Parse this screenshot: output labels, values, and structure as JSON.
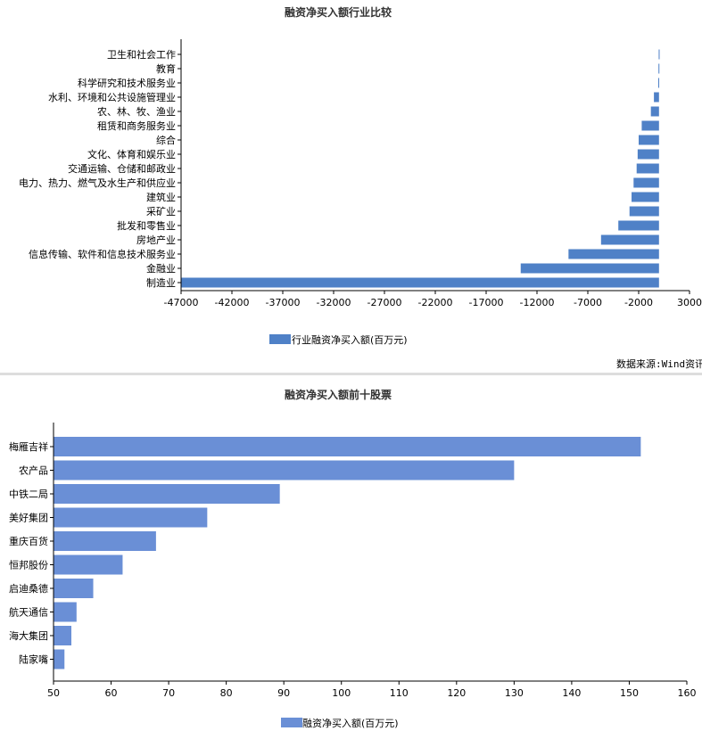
{
  "charts": {
    "bar_color": "#4f81c7",
    "bar_color_2": "#6a8fd6",
    "source_text": "数据来源:Wind资讯"
  },
  "chart_data": [
    {
      "type": "bar",
      "orientation": "horizontal",
      "title": "融资净买入额行业比较",
      "categories": [
        "卫生和社会工作",
        "教育",
        "科学研究和技术服务业",
        "水利、环境和公共设施管理业",
        "农、林、牧、渔业",
        "租赁和商务服务业",
        "综合",
        "文化、体育和娱乐业",
        "交通运输、仓储和邮政业",
        "电力、热力、燃气及水生产和供应业",
        "建筑业",
        "采矿业",
        "批发和零售业",
        "房地产业",
        "信息传输、软件和信息技术服务业",
        "金融业",
        "制造业"
      ],
      "series": [
        {
          "name": "行业融资净买入额(百万元)",
          "values": [
            -30,
            -50,
            -70,
            -500,
            -800,
            -1700,
            -2000,
            -2100,
            -2200,
            -2500,
            -2700,
            -2900,
            -4000,
            -5700,
            -8900,
            -13600,
            -47000
          ]
        }
      ],
      "xlim": [
        -47000,
        3000
      ],
      "xticks": [
        -47000,
        -42000,
        -37000,
        -32000,
        -27000,
        -22000,
        -17000,
        -12000,
        -7000,
        -2000,
        3000
      ],
      "legend": "bottom"
    },
    {
      "type": "bar",
      "orientation": "horizontal",
      "title": "融资净买入额前十股票",
      "categories": [
        "梅雁吉祥",
        "农产品",
        "中铁二局",
        "美好集团",
        "重庆百货",
        "恒邦股份",
        "启迪桑德",
        "航天通信",
        "海大集团",
        "陆家嘴"
      ],
      "series": [
        {
          "name": "融资净买入额(百万元)",
          "values": [
            152,
            130,
            89.3,
            76.7,
            67.8,
            62,
            56.9,
            54,
            53.1,
            51.9
          ]
        }
      ],
      "xlim": [
        50,
        160
      ],
      "xticks": [
        50,
        60,
        70,
        80,
        90,
        100,
        110,
        120,
        130,
        140,
        150,
        160
      ],
      "legend": "bottom"
    }
  ]
}
